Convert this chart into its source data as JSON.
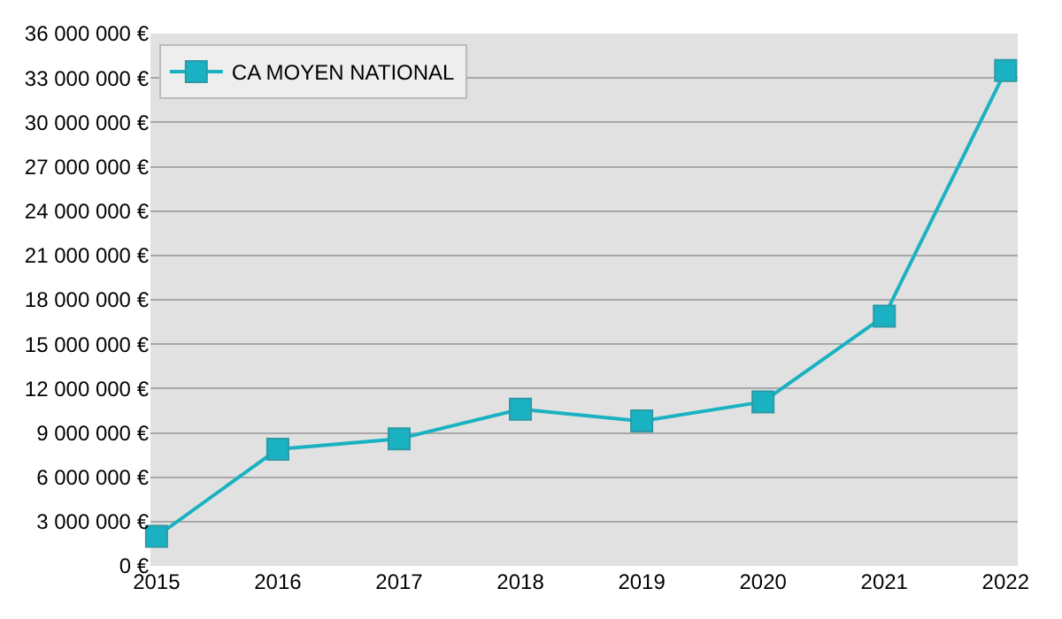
{
  "chart_data": {
    "type": "line",
    "categories": [
      "2015",
      "2016",
      "2017",
      "2018",
      "2019",
      "2020",
      "2021",
      "2022"
    ],
    "series": [
      {
        "name": "CA MOYEN NATIONAL",
        "color": "#1ab2c2",
        "values": [
          2000000,
          7900000,
          8600000,
          10600000,
          9800000,
          11100000,
          16900000,
          33500000
        ]
      }
    ],
    "ylim": [
      0,
      36000000
    ],
    "yticks": [
      {
        "value": 0,
        "label": "0 €"
      },
      {
        "value": 3000000,
        "label": "3 000 000 €"
      },
      {
        "value": 6000000,
        "label": "6 000 000 €"
      },
      {
        "value": 9000000,
        "label": "9 000 000 €"
      },
      {
        "value": 12000000,
        "label": "12 000 000 €"
      },
      {
        "value": 15000000,
        "label": "15 000 000 €"
      },
      {
        "value": 18000000,
        "label": "18 000 000 €"
      },
      {
        "value": 21000000,
        "label": "21 000 000 €"
      },
      {
        "value": 24000000,
        "label": "24 000 000 €"
      },
      {
        "value": 27000000,
        "label": "27 000 000 €"
      },
      {
        "value": 30000000,
        "label": "30 000 000 €"
      },
      {
        "value": 33000000,
        "label": "33 000 000 €"
      },
      {
        "value": 36000000,
        "label": "36 000 000 €"
      }
    ],
    "grid": "y",
    "legend": "top left",
    "marker": "square",
    "line_style": "solid"
  }
}
